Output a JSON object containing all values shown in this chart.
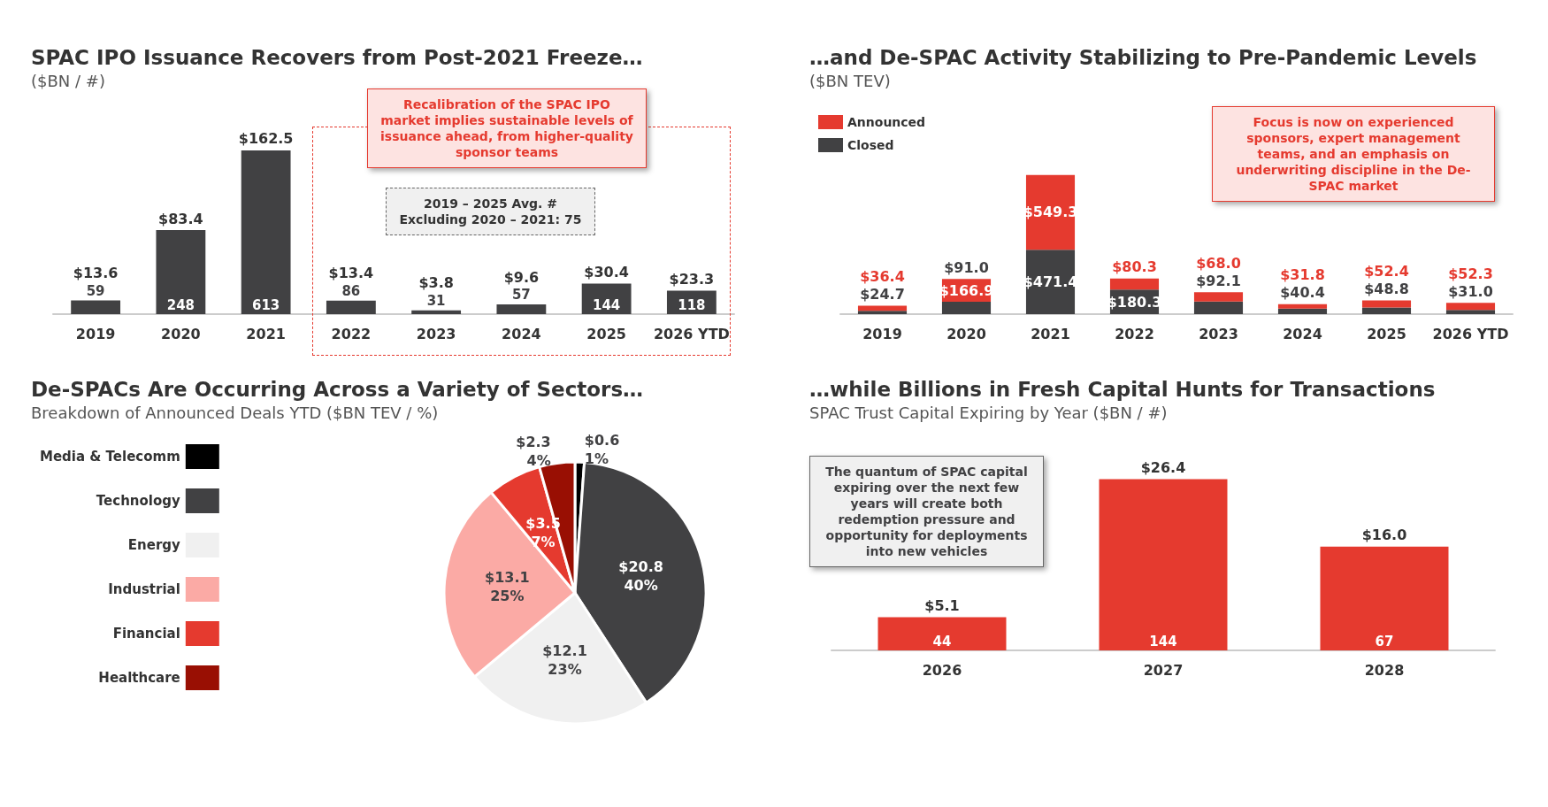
{
  "chart_data": [
    {
      "type": "bar",
      "title": "SPAC IPO Issuance Recovers from Post-2021 Freeze…",
      "subtitle": "($BN / #)",
      "categories": [
        "2019",
        "2020",
        "2021",
        "2022",
        "2023",
        "2024",
        "2025",
        "2026 YTD"
      ],
      "values": [
        13.6,
        83.4,
        162.5,
        13.4,
        3.8,
        9.6,
        30.4,
        23.3
      ],
      "value_labels": [
        "$13.6",
        "$83.4",
        "$162.5",
        "$13.4",
        "$3.8",
        "$9.6",
        "$30.4",
        "$23.3"
      ],
      "color": "#414143",
      "tick_labels": "x",
      "annotations": [
        "59",
        "248",
        "613",
        "86",
        "31",
        "57",
        "144",
        "118",
        "2019 – 2025 Avg. #\nExcluding 2020 – 2021: 75",
        "Recalibration of the SPAC IPO market implies sustainable levels of issuance ahead, from higher-quality sponsor teams"
      ]
    },
    {
      "type": "bar",
      "title": "…and De-SPAC Activity Stabilizing to Pre-Pandemic Levels",
      "subtitle": "($BN TEV)",
      "categories": [
        "2019",
        "2020",
        "2021",
        "2022",
        "2023",
        "2024",
        "2025",
        "2026 YTD"
      ],
      "stacked": true,
      "tick_labels": "x",
      "legend": "top left",
      "series": [
        {
          "name": "Closed",
          "color": "#414143",
          "values": [
            24.7,
            91.0,
            471.4,
            180.3,
            92.1,
            40.4,
            48.8,
            31.0
          ],
          "value_labels": [
            "$24.7",
            "$91.0",
            "$471.4",
            "$180.3",
            "$92.1",
            "$40.4",
            "$48.8",
            "$31.0"
          ]
        },
        {
          "name": "Announced",
          "color": "#e53a2f",
          "values": [
            36.4,
            166.9,
            549.3,
            80.3,
            68.0,
            31.8,
            52.4,
            52.3
          ],
          "value_labels": [
            "$36.4",
            "$166.9",
            "$549.3",
            "$80.3",
            "$68.0",
            "$31.8",
            "$52.4",
            "$52.3"
          ]
        }
      ],
      "annotations": [
        "Focus is now on experienced sponsors, expert management teams, and an emphasis on underwriting discipline in the De-SPAC market"
      ]
    },
    {
      "type": "pie",
      "title": "De-SPACs Are Occurring Across a Variety of Sectors…",
      "subtitle": "Breakdown of Announced Deals YTD ($BN TEV / %)",
      "legend": "left",
      "categories": [
        "Media & Telecomm",
        "Technology",
        "Energy",
        "Industrial",
        "Financial",
        "Healthcare"
      ],
      "values": [
        0.6,
        20.8,
        12.1,
        13.1,
        3.5,
        2.3
      ],
      "value_labels": [
        "$0.6\n1%",
        "$20.8\n40%",
        "$12.1\n23%",
        "$13.1\n25%",
        "$3.5\n7%",
        "$2.3\n4%"
      ],
      "colors": [
        "#000000",
        "#414143",
        "#f0f0f0",
        "#fbaaa5",
        "#e53a2f",
        "#990f03"
      ]
    },
    {
      "type": "bar",
      "title": "…while Billions in Fresh Capital Hunts for Transactions",
      "subtitle": "SPAC Trust Capital Expiring by Year ($BN / #)",
      "categories": [
        "2026",
        "2027",
        "2028"
      ],
      "values": [
        5.1,
        26.4,
        16.0
      ],
      "value_labels": [
        "$5.1",
        "$26.4",
        "$16.0"
      ],
      "color": "#e53a2f",
      "tick_labels": "x",
      "annotations": [
        "44",
        "144",
        "67",
        "The quantum of SPAC capital expiring over the next few years will create both redemption pressure and opportunity for deployments into new vehicles"
      ]
    }
  ]
}
